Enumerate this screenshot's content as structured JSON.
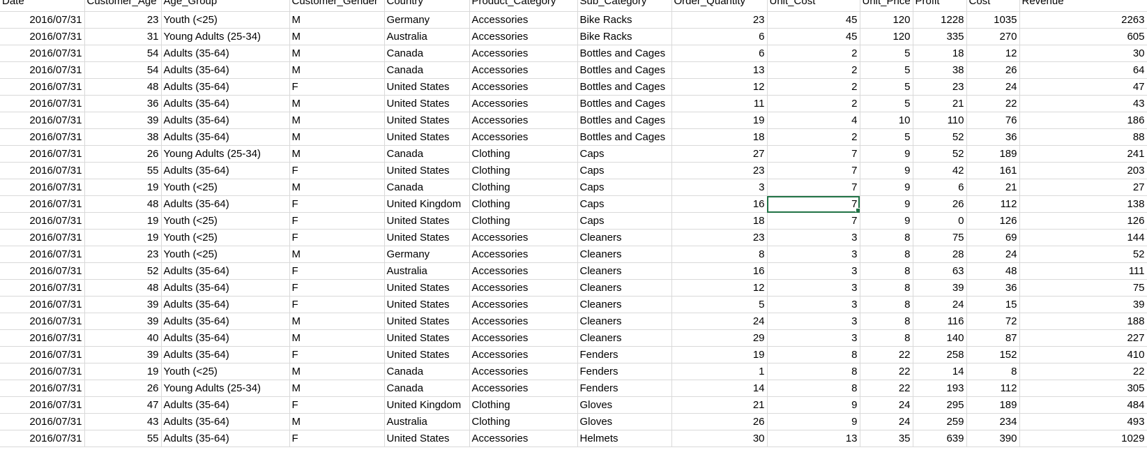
{
  "columns": [
    "Date",
    "Customer_Age",
    "Age_Group",
    "Customer_Gender",
    "Country",
    "Product_Category",
    "Sub_Category",
    "Order_Quantity",
    "Unit_Cost",
    "Unit_Price",
    "Profit",
    "Cost",
    "Revenue"
  ],
  "rows": [
    [
      "2016/07/31",
      "23",
      "Youth (<25)",
      "M",
      "Germany",
      "Accessories",
      "Bike Racks",
      "23",
      "45",
      "120",
      "1228",
      "1035",
      "2263"
    ],
    [
      "2016/07/31",
      "31",
      "Young Adults (25-34)",
      "M",
      "Australia",
      "Accessories",
      "Bike Racks",
      "6",
      "45",
      "120",
      "335",
      "270",
      "605"
    ],
    [
      "2016/07/31",
      "54",
      "Adults (35-64)",
      "M",
      "Canada",
      "Accessories",
      "Bottles and Cages",
      "6",
      "2",
      "5",
      "18",
      "12",
      "30"
    ],
    [
      "2016/07/31",
      "54",
      "Adults (35-64)",
      "M",
      "Canada",
      "Accessories",
      "Bottles and Cages",
      "13",
      "2",
      "5",
      "38",
      "26",
      "64"
    ],
    [
      "2016/07/31",
      "48",
      "Adults (35-64)",
      "F",
      "United States",
      "Accessories",
      "Bottles and Cages",
      "12",
      "2",
      "5",
      "23",
      "24",
      "47"
    ],
    [
      "2016/07/31",
      "36",
      "Adults (35-64)",
      "M",
      "United States",
      "Accessories",
      "Bottles and Cages",
      "11",
      "2",
      "5",
      "21",
      "22",
      "43"
    ],
    [
      "2016/07/31",
      "39",
      "Adults (35-64)",
      "M",
      "United States",
      "Accessories",
      "Bottles and Cages",
      "19",
      "4",
      "10",
      "110",
      "76",
      "186"
    ],
    [
      "2016/07/31",
      "38",
      "Adults (35-64)",
      "M",
      "United States",
      "Accessories",
      "Bottles and Cages",
      "18",
      "2",
      "5",
      "52",
      "36",
      "88"
    ],
    [
      "2016/07/31",
      "26",
      "Young Adults (25-34)",
      "M",
      "Canada",
      "Clothing",
      "Caps",
      "27",
      "7",
      "9",
      "52",
      "189",
      "241"
    ],
    [
      "2016/07/31",
      "55",
      "Adults (35-64)",
      "F",
      "United States",
      "Clothing",
      "Caps",
      "23",
      "7",
      "9",
      "42",
      "161",
      "203"
    ],
    [
      "2016/07/31",
      "19",
      "Youth (<25)",
      "M",
      "Canada",
      "Clothing",
      "Caps",
      "3",
      "7",
      "9",
      "6",
      "21",
      "27"
    ],
    [
      "2016/07/31",
      "48",
      "Adults (35-64)",
      "F",
      "United Kingdom",
      "Clothing",
      "Caps",
      "16",
      "7",
      "9",
      "26",
      "112",
      "138"
    ],
    [
      "2016/07/31",
      "19",
      "Youth (<25)",
      "F",
      "United States",
      "Clothing",
      "Caps",
      "18",
      "7",
      "9",
      "0",
      "126",
      "126"
    ],
    [
      "2016/07/31",
      "19",
      "Youth (<25)",
      "F",
      "United States",
      "Accessories",
      "Cleaners",
      "23",
      "3",
      "8",
      "75",
      "69",
      "144"
    ],
    [
      "2016/07/31",
      "23",
      "Youth (<25)",
      "M",
      "Germany",
      "Accessories",
      "Cleaners",
      "8",
      "3",
      "8",
      "28",
      "24",
      "52"
    ],
    [
      "2016/07/31",
      "52",
      "Adults (35-64)",
      "F",
      "Australia",
      "Accessories",
      "Cleaners",
      "16",
      "3",
      "8",
      "63",
      "48",
      "111"
    ],
    [
      "2016/07/31",
      "48",
      "Adults (35-64)",
      "F",
      "United States",
      "Accessories",
      "Cleaners",
      "12",
      "3",
      "8",
      "39",
      "36",
      "75"
    ],
    [
      "2016/07/31",
      "39",
      "Adults (35-64)",
      "F",
      "United States",
      "Accessories",
      "Cleaners",
      "5",
      "3",
      "8",
      "24",
      "15",
      "39"
    ],
    [
      "2016/07/31",
      "39",
      "Adults (35-64)",
      "M",
      "United States",
      "Accessories",
      "Cleaners",
      "24",
      "3",
      "8",
      "116",
      "72",
      "188"
    ],
    [
      "2016/07/31",
      "40",
      "Adults (35-64)",
      "M",
      "United States",
      "Accessories",
      "Cleaners",
      "29",
      "3",
      "8",
      "140",
      "87",
      "227"
    ],
    [
      "2016/07/31",
      "39",
      "Adults (35-64)",
      "F",
      "United States",
      "Accessories",
      "Fenders",
      "19",
      "8",
      "22",
      "258",
      "152",
      "410"
    ],
    [
      "2016/07/31",
      "19",
      "Youth (<25)",
      "M",
      "Canada",
      "Accessories",
      "Fenders",
      "1",
      "8",
      "22",
      "14",
      "8",
      "22"
    ],
    [
      "2016/07/31",
      "26",
      "Young Adults (25-34)",
      "M",
      "Canada",
      "Accessories",
      "Fenders",
      "14",
      "8",
      "22",
      "193",
      "112",
      "305"
    ],
    [
      "2016/07/31",
      "47",
      "Adults (35-64)",
      "F",
      "United Kingdom",
      "Clothing",
      "Gloves",
      "21",
      "9",
      "24",
      "295",
      "189",
      "484"
    ],
    [
      "2016/07/31",
      "43",
      "Adults (35-64)",
      "M",
      "Australia",
      "Clothing",
      "Gloves",
      "26",
      "9",
      "24",
      "259",
      "234",
      "493"
    ],
    [
      "2016/07/31",
      "55",
      "Adults (35-64)",
      "F",
      "United States",
      "Accessories",
      "Helmets",
      "30",
      "13",
      "35",
      "639",
      "390",
      "1029"
    ]
  ],
  "selected_cell": {
    "row": 11,
    "column": "Unit_Cost"
  },
  "colors": {
    "gridline": "#d9d9d9",
    "selection": "#217346"
  }
}
